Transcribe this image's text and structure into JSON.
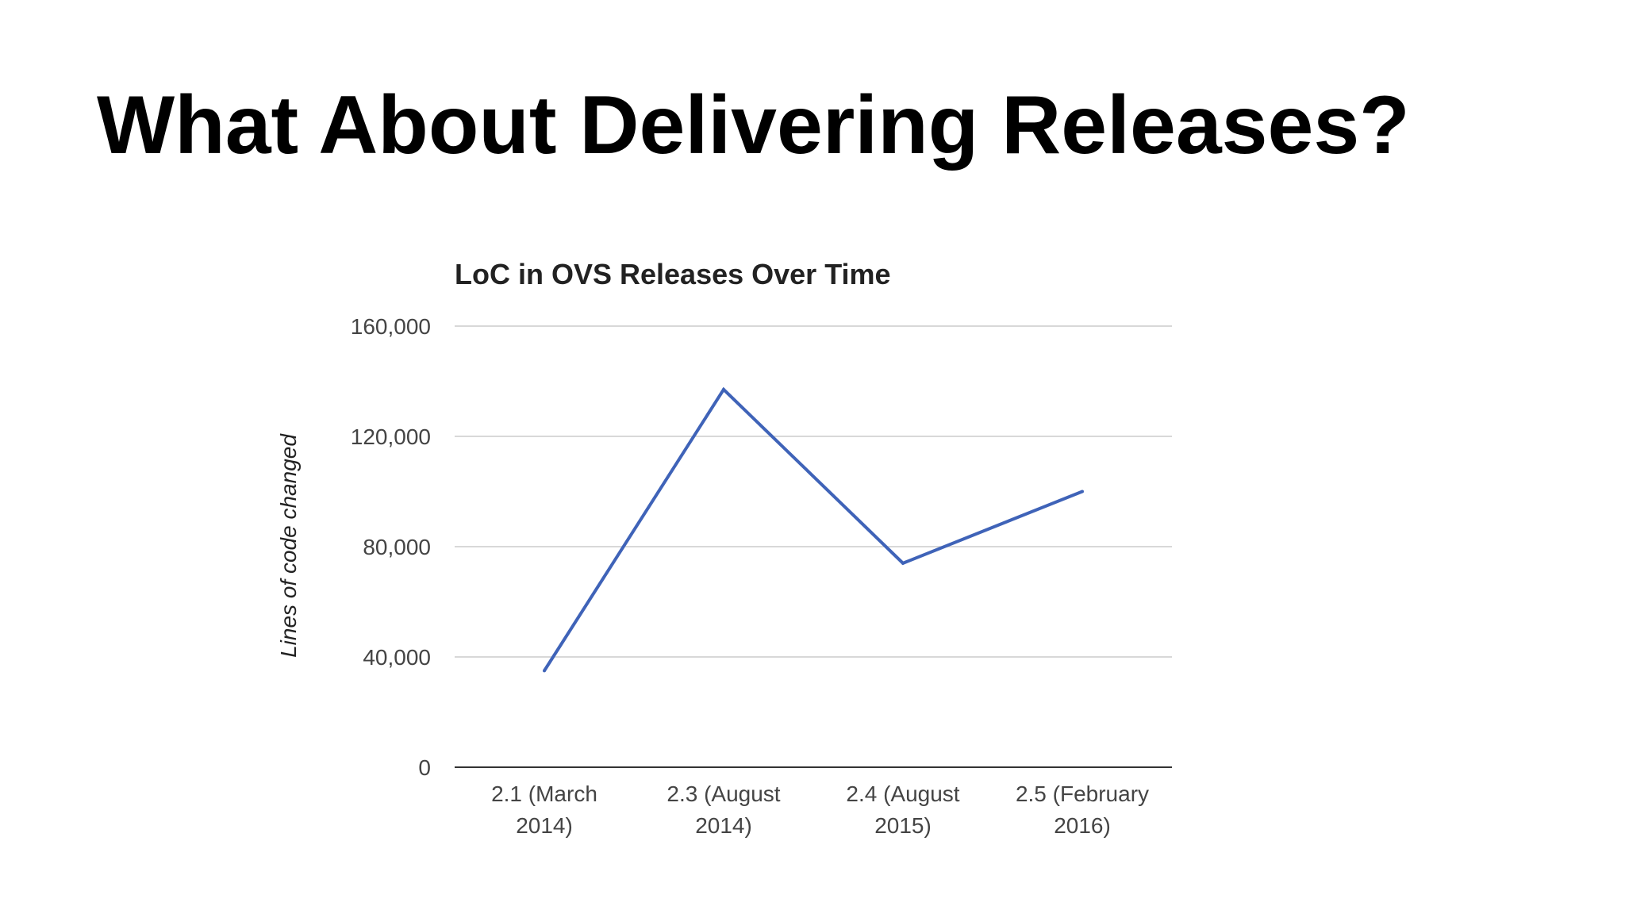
{
  "slide": {
    "title": "What About Delivering Releases?"
  },
  "colors": {
    "series_line": "#3f63b8",
    "gridline": "#cccccc",
    "baseline": "#333333"
  },
  "chart_data": {
    "type": "line",
    "title": "LoC in OVS Releases Over Time",
    "xlabel": "",
    "ylabel": "Lines of code changed",
    "categories": [
      [
        "2.1 (March",
        "2014)"
      ],
      [
        "2.3 (August",
        "2014)"
      ],
      [
        "2.4 (August",
        "2015)"
      ],
      [
        "2.5 (February",
        "2016)"
      ]
    ],
    "series": [
      {
        "values": [
          35000,
          137000,
          74000,
          100000
        ]
      }
    ],
    "ylim": [
      0,
      160000
    ],
    "yticks": [
      0,
      40000,
      80000,
      120000,
      160000
    ],
    "ytick_labels": [
      "0",
      "40,000",
      "80,000",
      "120,000",
      "160,000"
    ],
    "grid": true,
    "legend": "none"
  }
}
